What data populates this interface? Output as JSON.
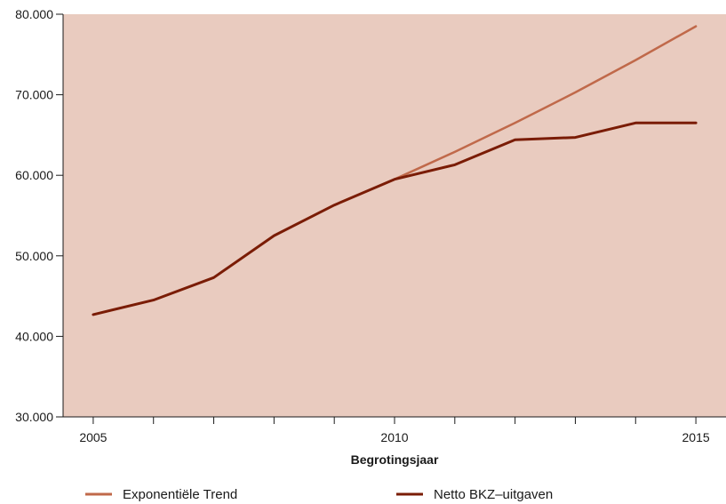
{
  "chart_data": {
    "type": "line",
    "title": "",
    "xlabel": "Begrotingsjaar",
    "ylabel": "",
    "x": [
      2005,
      2006,
      2007,
      2008,
      2009,
      2010,
      2011,
      2012,
      2013,
      2014,
      2015
    ],
    "xlim": [
      2004.5,
      2015.5
    ],
    "ylim": [
      30000,
      80000
    ],
    "xticks": [
      2005,
      2006,
      2007,
      2008,
      2009,
      2010,
      2011,
      2012,
      2013,
      2014,
      2015
    ],
    "xtick_labels": {
      "2005": "2005",
      "2010": "2010",
      "2015": "2015"
    },
    "yticks": [
      30000,
      40000,
      50000,
      60000,
      70000,
      80000
    ],
    "ytick_labels": [
      "30.000",
      "40.000",
      "50.000",
      "60.000",
      "70.000",
      "80.000"
    ],
    "grid": false,
    "legend_position": "bottom",
    "plot_background": "#e9cbbf",
    "series": [
      {
        "name": "Exponentiële Trend",
        "color": "#c0694a",
        "x": [
          2010,
          2011,
          2012,
          2013,
          2014,
          2015
        ],
        "values": [
          59500,
          62900,
          66500,
          70300,
          74300,
          78500
        ]
      },
      {
        "name": "Netto BKZ–uitgaven",
        "color": "#7a1c05",
        "x": [
          2005,
          2006,
          2007,
          2008,
          2009,
          2010,
          2011,
          2012,
          2013,
          2014,
          2015
        ],
        "values": [
          42700,
          44500,
          47300,
          52500,
          56300,
          59500,
          61300,
          64400,
          64700,
          66500,
          66500
        ]
      }
    ]
  }
}
